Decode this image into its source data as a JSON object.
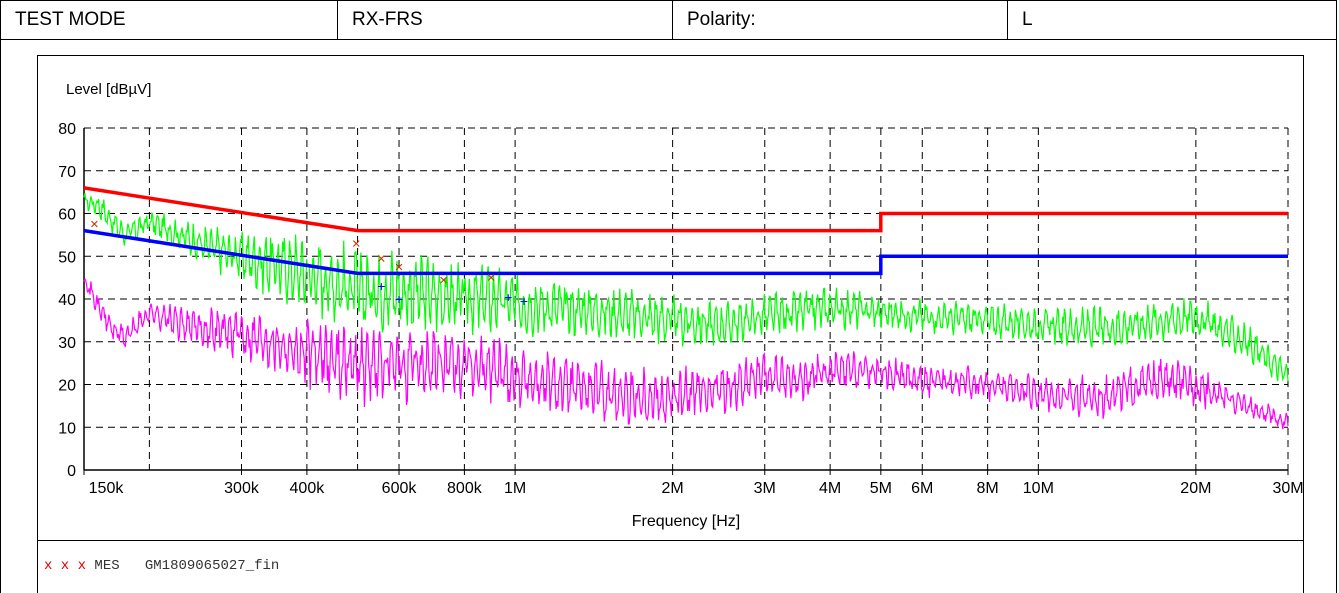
{
  "header": {
    "test_mode_label": "TEST MODE",
    "test_mode_value": "RX-FRS",
    "polarity_label": "Polarity:",
    "polarity_value": "L"
  },
  "legend": {
    "marker": "x x x",
    "name": "MES",
    "file": "GM1809065027_fin"
  },
  "colors": {
    "limit_qp": "#ff0000",
    "limit_avg": "#0000ff",
    "trace_peak": "#00ff00",
    "trace_avg": "#ff00ff",
    "marker_qp": "#cc3300",
    "marker_avg": "#0000ff"
  },
  "chart_data": {
    "type": "line",
    "xlabel": "Frequency [Hz]",
    "ylabel": "Level [dBµV]",
    "x_scale": "log",
    "xlim": [
      150000,
      30000000
    ],
    "ylim": [
      0,
      80
    ],
    "grid": true,
    "yticks": [
      0,
      10,
      20,
      30,
      40,
      50,
      60,
      70,
      80
    ],
    "xticks": [
      {
        "v": 150000,
        "label": "150k"
      },
      {
        "v": 300000,
        "label": "300k"
      },
      {
        "v": 400000,
        "label": "400k"
      },
      {
        "v": 600000,
        "label": "600k"
      },
      {
        "v": 800000,
        "label": "800k"
      },
      {
        "v": 1000000,
        "label": "1M"
      },
      {
        "v": 2000000,
        "label": "2M"
      },
      {
        "v": 3000000,
        "label": "3M"
      },
      {
        "v": 4000000,
        "label": "4M"
      },
      {
        "v": 5000000,
        "label": "5M"
      },
      {
        "v": 6000000,
        "label": "6M"
      },
      {
        "v": 8000000,
        "label": "8M"
      },
      {
        "v": 10000000,
        "label": "10M"
      },
      {
        "v": 20000000,
        "label": "20M"
      },
      {
        "v": 30000000,
        "label": "30M"
      }
    ],
    "extra_gridlines": [
      200000,
      500000
    ],
    "series": [
      {
        "kind": "limit_qp",
        "x": [
          150000,
          500000,
          5000000,
          5000000,
          30000000
        ],
        "y": [
          66,
          56,
          56,
          60,
          60
        ]
      },
      {
        "kind": "limit_avg",
        "x": [
          150000,
          500000,
          5000000,
          5000000,
          30000000
        ],
        "y": [
          56,
          46,
          46,
          50,
          50
        ]
      },
      {
        "kind": "trace_peak",
        "x": [
          150000,
          160000,
          170000,
          180000,
          200000,
          230000,
          260000,
          300000,
          350000,
          400000,
          450000,
          500000,
          600000,
          700000,
          800000,
          900000,
          1000000,
          1200000,
          1500000,
          2000000,
          2500000,
          3000000,
          3500000,
          4000000,
          5000000,
          6000000,
          8000000,
          10000000,
          13000000,
          17000000,
          20000000,
          25000000,
          30000000
        ],
        "y": [
          63,
          62,
          58,
          55,
          58,
          55,
          52,
          50,
          48,
          46,
          44,
          42,
          42,
          41,
          40,
          40,
          39,
          38,
          37,
          35,
          34,
          36,
          37,
          38,
          37,
          36,
          35,
          34,
          33,
          35,
          36,
          30,
          22
        ],
        "swing": [
          2,
          3,
          3,
          3,
          3,
          4,
          5,
          6,
          8,
          9,
          10,
          10,
          10,
          9,
          8,
          8,
          7,
          7,
          6,
          6,
          5,
          5,
          5,
          5,
          4,
          4,
          4,
          4,
          5,
          5,
          5,
          4,
          3
        ]
      },
      {
        "kind": "trace_avg",
        "x": [
          150000,
          160000,
          170000,
          180000,
          200000,
          230000,
          260000,
          300000,
          350000,
          400000,
          450000,
          500000,
          600000,
          700000,
          800000,
          900000,
          1000000,
          1200000,
          1500000,
          2000000,
          2500000,
          3000000,
          3500000,
          4000000,
          5000000,
          6000000,
          8000000,
          10000000,
          13000000,
          17000000,
          20000000,
          25000000,
          30000000
        ],
        "y": [
          45,
          38,
          33,
          31,
          37,
          34,
          33,
          32,
          30,
          27,
          26,
          25,
          24,
          25,
          24,
          24,
          22,
          20,
          18,
          17,
          19,
          22,
          21,
          23,
          23,
          21,
          20,
          18,
          17,
          21,
          20,
          15,
          11
        ],
        "swing": [
          2,
          3,
          3,
          3,
          3,
          4,
          5,
          6,
          7,
          8,
          9,
          10,
          9,
          9,
          8,
          8,
          8,
          7,
          7,
          7,
          6,
          5,
          5,
          5,
          4,
          4,
          4,
          4,
          5,
          5,
          5,
          3,
          2
        ]
      }
    ],
    "markers": [
      {
        "kind": "qp",
        "x": [
          157000,
          497000,
          555000,
          600000,
          730000,
          900000
        ],
        "y": [
          57.5,
          53,
          49.5,
          47.5,
          44.5,
          45
        ]
      },
      {
        "kind": "avg",
        "x": [
          555000,
          600000,
          970000,
          1040000
        ],
        "y": [
          43,
          40,
          40.5,
          39.5
        ]
      }
    ]
  }
}
